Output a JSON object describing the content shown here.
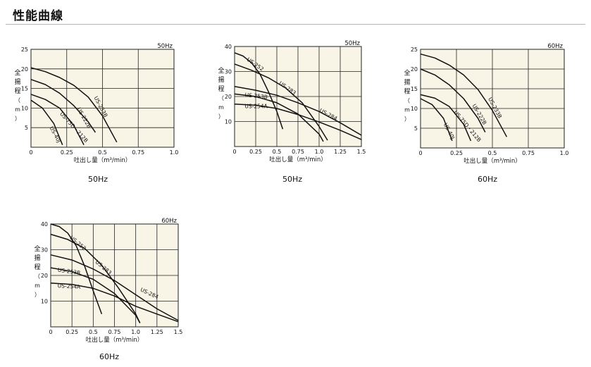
{
  "page": {
    "title": "性能曲線"
  },
  "chart_data": [
    {
      "type": "line",
      "freq_label": "50Hz",
      "caption": "50Hz",
      "xlabel": "吐出し量（m³/min）",
      "ylabel_chars": [
        "全",
        "揚",
        "程",
        "（",
        "m",
        "）"
      ],
      "xlim": [
        0,
        1.0
      ],
      "ylim": [
        0,
        25
      ],
      "xticks": [
        0,
        0.25,
        0.5,
        0.75,
        1.0
      ],
      "xtick_labels": [
        "0",
        "0.25",
        "0.5",
        "0.75",
        "1.0"
      ],
      "yticks": [
        5,
        10,
        15,
        20,
        25
      ],
      "ytick_labels": [
        "5",
        "10",
        "15",
        "20",
        "25"
      ],
      "grid": true,
      "series": [
        {
          "name": "US-233B",
          "label_at": [
            0.44,
            12.7
          ],
          "angle": 62,
          "x": [
            0,
            0.1,
            0.2,
            0.3,
            0.4,
            0.5,
            0.6
          ],
          "y": [
            20.3,
            19.3,
            17.8,
            15.8,
            12.8,
            8.0,
            1.3
          ]
        },
        {
          "name": "US-222B",
          "label_at": [
            0.32,
            9.8
          ],
          "angle": 60,
          "x": [
            0,
            0.1,
            0.2,
            0.3,
            0.4,
            0.45
          ],
          "y": [
            17.3,
            16.0,
            13.8,
            10.6,
            6.5,
            3.8
          ]
        },
        {
          "name": "US-75D・212B",
          "label_at": [
            0.2,
            8.5
          ],
          "angle": 48,
          "x": [
            0,
            0.1,
            0.2,
            0.3,
            0.37
          ],
          "y": [
            13.5,
            12.2,
            10.0,
            5.5,
            0.6
          ]
        },
        {
          "name": "US-40J",
          "label_at": [
            0.13,
            5.0
          ],
          "angle": 62,
          "x": [
            0,
            0.08,
            0.16,
            0.22
          ],
          "y": [
            12.0,
            10.0,
            6.0,
            0.6
          ]
        }
      ]
    },
    {
      "type": "line",
      "freq_label": "50Hz",
      "caption": "50Hz",
      "xlabel": "吐出し量（m³/min）",
      "ylabel_chars": [
        "全",
        "揚",
        "程",
        "（",
        "m",
        "）"
      ],
      "xlim": [
        0,
        1.5
      ],
      "ylim": [
        0,
        40
      ],
      "xticks": [
        0,
        0.25,
        0.5,
        0.75,
        1.0,
        1.25,
        1.5
      ],
      "xtick_labels": [
        "0",
        "0.25",
        "0.5",
        "0.75",
        "1.0",
        "1.25",
        "1.5"
      ],
      "yticks": [
        10,
        20,
        30,
        40
      ],
      "ytick_labels": [
        "10",
        "20",
        "30",
        "40"
      ],
      "grid": true,
      "series": [
        {
          "name": "US-252",
          "label_at": [
            0.14,
            34.5
          ],
          "angle": 35,
          "x": [
            0,
            0.1,
            0.2,
            0.3,
            0.4,
            0.5,
            0.57
          ],
          "y": [
            37.5,
            36.2,
            33.5,
            29.0,
            22.0,
            14.0,
            7.0
          ]
        },
        {
          "name": "US-283",
          "label_at": [
            0.52,
            25.0
          ],
          "angle": 35,
          "x": [
            0,
            0.2,
            0.4,
            0.6,
            0.8,
            1.0,
            1.1
          ],
          "y": [
            33.0,
            30.5,
            27.5,
            23.5,
            17.5,
            8.0,
            2.5
          ]
        },
        {
          "name": "US-284",
          "label_at": [
            1.0,
            14.0
          ],
          "angle": 28,
          "x": [
            0,
            0.25,
            0.5,
            0.75,
            1.0,
            1.25,
            1.5
          ],
          "y": [
            24.0,
            22.5,
            20.5,
            17.5,
            14.0,
            9.5,
            4.5
          ]
        },
        {
          "name": "US-253B",
          "label_at": [
            0.12,
            20.0
          ],
          "angle": 6,
          "x": [
            0,
            0.25,
            0.5,
            0.75,
            1.0,
            1.05
          ],
          "y": [
            21.0,
            20.0,
            17.5,
            13.0,
            5.0,
            2.0
          ]
        },
        {
          "name": "US-254A",
          "label_at": [
            0.12,
            15.3
          ],
          "angle": 0,
          "x": [
            0,
            0.25,
            0.5,
            0.75,
            1.0,
            1.25,
            1.5
          ],
          "y": [
            17.0,
            16.5,
            15.2,
            12.8,
            9.8,
            6.5,
            2.8
          ]
        }
      ]
    },
    {
      "type": "line",
      "freq_label": "60Hz",
      "caption": "60Hz",
      "xlabel": "吐出し量（m³/min）",
      "ylabel_chars": [
        "全",
        "揚",
        "程",
        "（",
        "m",
        "）"
      ],
      "xlim": [
        0,
        1.0
      ],
      "ylim": [
        0,
        25
      ],
      "xticks": [
        0,
        0.25,
        0.5,
        0.75,
        1.0
      ],
      "xtick_labels": [
        "0",
        "0.25",
        "0.5",
        "0.75",
        "1.0"
      ],
      "yticks": [
        5,
        10,
        15,
        20,
        25
      ],
      "ytick_labels": [
        "5",
        "10",
        "15",
        "20",
        "25"
      ],
      "grid": true,
      "series": [
        {
          "name": "US-233B",
          "label_at": [
            0.47,
            12.5
          ],
          "angle": 62,
          "x": [
            0,
            0.1,
            0.2,
            0.3,
            0.4,
            0.5,
            0.6
          ],
          "y": [
            23.8,
            22.8,
            21.0,
            18.5,
            14.8,
            9.5,
            2.8
          ]
        },
        {
          "name": "US-222B",
          "label_at": [
            0.36,
            10.8
          ],
          "angle": 60,
          "x": [
            0,
            0.1,
            0.2,
            0.3,
            0.4,
            0.45
          ],
          "y": [
            20.0,
            18.5,
            16.0,
            12.5,
            7.5,
            4.0
          ]
        },
        {
          "name": "US-75D・212B",
          "label_at": [
            0.23,
            9.0
          ],
          "angle": 50,
          "x": [
            0,
            0.1,
            0.2,
            0.3,
            0.35
          ],
          "y": [
            13.5,
            12.6,
            10.5,
            6.0,
            1.8
          ]
        },
        {
          "name": "US-40J",
          "label_at": [
            0.16,
            6.0
          ],
          "angle": 62,
          "x": [
            0,
            0.08,
            0.16,
            0.22
          ],
          "y": [
            12.5,
            11.0,
            7.5,
            1.8
          ]
        }
      ]
    },
    {
      "type": "line",
      "freq_label": "60Hz",
      "caption": "60Hz",
      "xlabel": "吐出し量（m³/min）",
      "ylabel_chars": [
        "全",
        "揚",
        "程",
        "（",
        "m",
        "）"
      ],
      "xlim": [
        0,
        1.5
      ],
      "ylim": [
        0,
        40
      ],
      "xticks": [
        0,
        0.25,
        0.5,
        0.75,
        1.0,
        1.25,
        1.5
      ],
      "xtick_labels": [
        "0",
        "0.25",
        "0.5",
        "0.75",
        "1.0",
        "1.25",
        "1.5"
      ],
      "yticks": [
        10,
        20,
        30,
        40
      ],
      "ytick_labels": [
        "10",
        "20",
        "30",
        "40"
      ],
      "grid": true,
      "series": [
        {
          "name": "US-252",
          "label_at": [
            0.22,
            34.5
          ],
          "angle": 40,
          "x": [
            0,
            0.1,
            0.2,
            0.3,
            0.4,
            0.5,
            0.6
          ],
          "y": [
            40.0,
            39.0,
            36.5,
            31.5,
            23.5,
            14.0,
            5.0
          ]
        },
        {
          "name": "US-283",
          "label_at": [
            0.52,
            25.0
          ],
          "angle": 40,
          "x": [
            0,
            0.2,
            0.4,
            0.6,
            0.8,
            1.0,
            1.05
          ],
          "y": [
            36.0,
            34.0,
            30.5,
            24.0,
            15.0,
            5.0,
            1.5
          ]
        },
        {
          "name": "US-284",
          "label_at": [
            1.05,
            14.0
          ],
          "angle": 25,
          "x": [
            0,
            0.25,
            0.5,
            0.75,
            1.0,
            1.25,
            1.5
          ],
          "y": [
            28.0,
            26.0,
            22.5,
            18.0,
            12.5,
            7.0,
            2.5
          ]
        },
        {
          "name": "US-253B",
          "label_at": [
            0.08,
            21.5
          ],
          "angle": 8,
          "x": [
            0,
            0.25,
            0.5,
            0.75,
            1.0,
            1.05
          ],
          "y": [
            23.0,
            21.5,
            18.5,
            13.0,
            4.5,
            1.5
          ]
        },
        {
          "name": "US-254A",
          "label_at": [
            0.08,
            15.3
          ],
          "angle": 3,
          "x": [
            0,
            0.25,
            0.5,
            0.75,
            1.0,
            1.25,
            1.5
          ],
          "y": [
            17.0,
            16.5,
            15.0,
            12.0,
            8.0,
            5.0,
            2.0
          ]
        }
      ]
    }
  ]
}
